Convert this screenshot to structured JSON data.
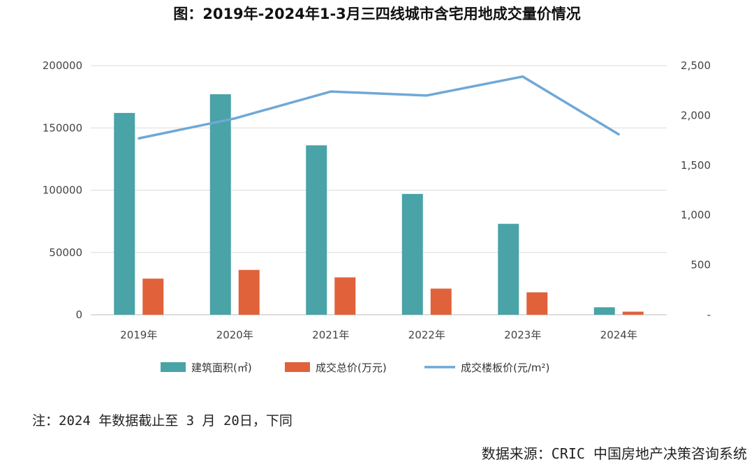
{
  "chart_data": {
    "type": "bar",
    "title": "图：2019年-2024年1-3月三四线城市含宅用地成交量价情况",
    "categories": [
      "2019年",
      "2020年",
      "2021年",
      "2022年",
      "2023年",
      "2024年"
    ],
    "series": [
      {
        "name": "建筑面积(㎡)",
        "kind": "bar",
        "axis": "left",
        "color": "#4aa3a6",
        "values": [
          162000,
          177000,
          136000,
          97000,
          73000,
          6000
        ]
      },
      {
        "name": "成交总价(万元)",
        "kind": "bar",
        "axis": "left",
        "color": "#e0623a",
        "values": [
          29000,
          36000,
          30000,
          21000,
          18000,
          2500
        ]
      },
      {
        "name": "成交楼板价(元/m²)",
        "kind": "line",
        "axis": "right",
        "color": "#6fa8d6",
        "values": [
          1770,
          1970,
          2240,
          2200,
          2390,
          1810
        ]
      }
    ],
    "y_left": {
      "min": 0,
      "max": 200000,
      "ticks": [
        "0",
        "50000",
        "100000",
        "150000",
        "200000"
      ]
    },
    "y_right": {
      "min": 0,
      "max": 2500,
      "ticks": [
        "-",
        "500",
        "1,000",
        "1,500",
        "2,000",
        "2,500"
      ]
    },
    "grid": true,
    "legend_position": "bottom"
  },
  "note": "注：2024 年数据截止至 3 月 20日，下同",
  "source": "数据来源：CRIC 中国房地产决策咨询系统"
}
